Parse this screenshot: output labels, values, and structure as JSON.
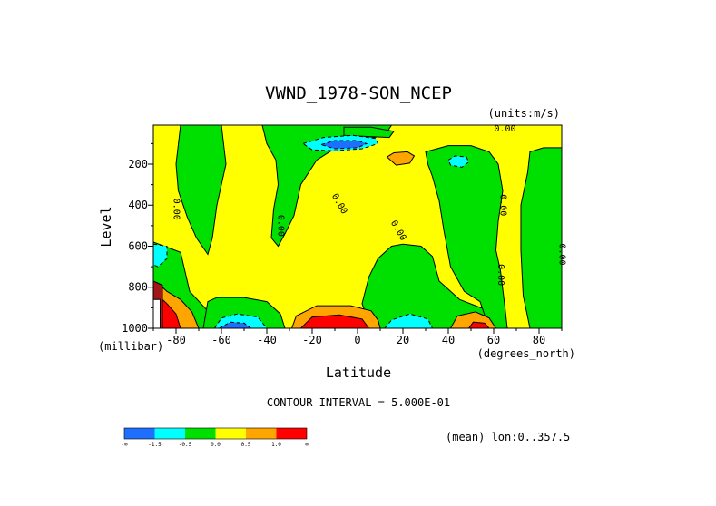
{
  "chart_data": {
    "type": "heatmap",
    "title": "VWND_1978-SON_NCEP",
    "units": "(units:m/s)",
    "xlabel": "Latitude",
    "x_units": "(degrees_north)",
    "ylabel": "Level",
    "y_units": "(millibar)",
    "xlim": [
      -90,
      90
    ],
    "ylim": [
      1000,
      10
    ],
    "y_reversed": true,
    "x_ticks": [
      {
        "value": -80,
        "label": "-80"
      },
      {
        "value": -60,
        "label": "-60"
      },
      {
        "value": -40,
        "label": "-40"
      },
      {
        "value": -20,
        "label": "-20"
      },
      {
        "value": 0,
        "label": "0"
      },
      {
        "value": 20,
        "label": "20"
      },
      {
        "value": 40,
        "label": "40"
      },
      {
        "value": 60,
        "label": "60"
      },
      {
        "value": 80,
        "label": "80"
      }
    ],
    "y_ticks": [
      {
        "value": 200,
        "label": "200"
      },
      {
        "value": 400,
        "label": "400"
      },
      {
        "value": 600,
        "label": "600"
      },
      {
        "value": 800,
        "label": "800"
      },
      {
        "value": 1000,
        "label": "1000"
      }
    ],
    "contour_interval_text": "CONTOUR INTERVAL = 5.000E-01",
    "mean_text": "(mean) lon:0..357.5",
    "legend": {
      "colors": [
        "#1f6fff",
        "#00ffff",
        "#00e000",
        "#ffff00",
        "#ffa500",
        "#ff0000"
      ],
      "labels": [
        "-∞",
        "-1.5",
        "-0.5",
        "0.0",
        "0.5",
        "1.0",
        "∞"
      ]
    },
    "contour_labels": [
      {
        "text": "0.00",
        "lat": -81,
        "lev": 420,
        "rot": 90
      },
      {
        "text": "0.00",
        "lat": -35,
        "lev": 500,
        "rot": 90
      },
      {
        "text": "0.00",
        "lat": -9,
        "lev": 400,
        "rot": 60
      },
      {
        "text": "0.00",
        "lat": 17,
        "lev": 530,
        "rot": 60
      },
      {
        "text": "0.00",
        "lat": 63,
        "lev": 400,
        "rot": 90
      },
      {
        "text": "0.00",
        "lat": 62,
        "lev": 740,
        "rot": 90
      },
      {
        "text": "0.00",
        "lat": 89,
        "lev": 640,
        "rot": 90
      },
      {
        "text": "0.00",
        "lat": 65,
        "lev": 40,
        "rot": 0
      }
    ],
    "regions": [
      {
        "level": "0.5",
        "pts": [
          [
            -90,
            10
          ],
          [
            90,
            10
          ],
          [
            90,
            1000
          ],
          [
            -90,
            1000
          ]
        ]
      },
      {
        "level": "0.0",
        "pts": [
          [
            -90,
            580
          ],
          [
            -78,
            630
          ],
          [
            -74,
            820
          ],
          [
            -64,
            940
          ],
          [
            -58,
            1000
          ],
          [
            -90,
            1000
          ]
        ]
      },
      {
        "level": "0.0",
        "pts": [
          [
            -78,
            10
          ],
          [
            -60,
            10
          ],
          [
            -58,
            200
          ],
          [
            -62,
            400
          ],
          [
            -64,
            560
          ],
          [
            -66,
            640
          ],
          [
            -71,
            560
          ],
          [
            -75,
            460
          ],
          [
            -79,
            330
          ],
          [
            -80,
            200
          ]
        ]
      },
      {
        "level": "0.0",
        "pts": [
          [
            -66,
            870
          ],
          [
            -62,
            850
          ],
          [
            -50,
            850
          ],
          [
            -40,
            870
          ],
          [
            -34,
            930
          ],
          [
            -32,
            1000
          ],
          [
            -68,
            1000
          ]
        ]
      },
      {
        "level": "0.0",
        "pts": [
          [
            -42,
            10
          ],
          [
            15,
            10
          ],
          [
            12,
            60
          ],
          [
            3,
            80
          ],
          [
            -8,
            110
          ],
          [
            -18,
            180
          ],
          [
            -25,
            300
          ],
          [
            -28,
            450
          ],
          [
            -32,
            540
          ],
          [
            -35,
            600
          ],
          [
            -38,
            560
          ],
          [
            -37,
            420
          ],
          [
            -35,
            300
          ],
          [
            -36,
            180
          ],
          [
            -40,
            100
          ]
        ]
      },
      {
        "level": "0.0",
        "pts": [
          [
            -6,
            20
          ],
          [
            6,
            20
          ],
          [
            16,
            40
          ],
          [
            14,
            70
          ],
          [
            -6,
            60
          ]
        ]
      },
      {
        "level": "0.0",
        "pts": [
          [
            15,
            600
          ],
          [
            20,
            590
          ],
          [
            28,
            600
          ],
          [
            33,
            650
          ],
          [
            36,
            770
          ],
          [
            45,
            860
          ],
          [
            52,
            890
          ],
          [
            64,
            940
          ],
          [
            66,
            1000
          ],
          [
            6,
            1000
          ],
          [
            2,
            880
          ],
          [
            5,
            750
          ],
          [
            9,
            660
          ]
        ]
      },
      {
        "level": "0.0",
        "pts": [
          [
            30,
            140
          ],
          [
            40,
            110
          ],
          [
            50,
            110
          ],
          [
            58,
            140
          ],
          [
            62,
            200
          ],
          [
            64,
            330
          ],
          [
            62,
            480
          ],
          [
            61,
            620
          ],
          [
            63,
            720
          ],
          [
            65,
            900
          ],
          [
            66,
            1000
          ],
          [
            58,
            1000
          ],
          [
            54,
            870
          ],
          [
            47,
            820
          ],
          [
            41,
            700
          ],
          [
            38,
            520
          ],
          [
            36,
            380
          ],
          [
            33,
            260
          ],
          [
            31,
            200
          ]
        ]
      },
      {
        "level": "0.0",
        "pts": [
          [
            76,
            140
          ],
          [
            82,
            120
          ],
          [
            90,
            120
          ],
          [
            90,
            1000
          ],
          [
            76,
            1000
          ],
          [
            73,
            840
          ],
          [
            72,
            620
          ],
          [
            72,
            400
          ],
          [
            75,
            240
          ]
        ]
      },
      {
        "level": "-0.5",
        "pts": [
          [
            -24,
            100
          ],
          [
            -15,
            70
          ],
          [
            -2,
            60
          ],
          [
            8,
            75
          ],
          [
            9,
            100
          ],
          [
            2,
            125
          ],
          [
            -10,
            135
          ],
          [
            -20,
            130
          ]
        ]
      },
      {
        "level": "-0.5",
        "pts": [
          [
            40,
            180
          ],
          [
            43,
            160
          ],
          [
            48,
            165
          ],
          [
            49,
            190
          ],
          [
            46,
            215
          ],
          [
            41,
            205
          ]
        ]
      },
      {
        "level": "-0.5",
        "pts": [
          [
            -90,
            590
          ],
          [
            -84,
            600
          ],
          [
            -84,
            660
          ],
          [
            -88,
            700
          ],
          [
            -90,
            690
          ]
        ]
      },
      {
        "level": "-0.5",
        "pts": [
          [
            -63,
            1000
          ],
          [
            -60,
            950
          ],
          [
            -53,
            930
          ],
          [
            -44,
            945
          ],
          [
            -40,
            1000
          ]
        ]
      },
      {
        "level": "-0.5",
        "pts": [
          [
            12,
            1000
          ],
          [
            15,
            960
          ],
          [
            23,
            930
          ],
          [
            31,
            955
          ],
          [
            33,
            1000
          ]
        ]
      },
      {
        "level": "-1.5",
        "pts": [
          [
            -16,
            105
          ],
          [
            -10,
            85
          ],
          [
            0,
            85
          ],
          [
            4,
            100
          ],
          [
            0,
            120
          ],
          [
            -10,
            125
          ]
        ]
      },
      {
        "level": "-1.5",
        "pts": [
          [
            -61,
            1000
          ],
          [
            -56,
            970
          ],
          [
            -50,
            975
          ],
          [
            -47,
            1000
          ]
        ]
      },
      {
        "level": "0.5h",
        "pts": [
          [
            13,
            165
          ],
          [
            16,
            145
          ],
          [
            22,
            140
          ],
          [
            25,
            160
          ],
          [
            23,
            195
          ],
          [
            17,
            205
          ]
        ]
      },
      {
        "level": "0.5h",
        "pts": [
          [
            -88,
            780
          ],
          [
            -84,
            820
          ],
          [
            -78,
            860
          ],
          [
            -73,
            920
          ],
          [
            -70,
            1000
          ],
          [
            -88,
            1000
          ]
        ]
      },
      {
        "level": "0.5h",
        "pts": [
          [
            -29,
            1000
          ],
          [
            -27,
            940
          ],
          [
            -18,
            890
          ],
          [
            -3,
            890
          ],
          [
            6,
            915
          ],
          [
            9,
            960
          ],
          [
            10,
            1000
          ]
        ]
      },
      {
        "level": "0.5h",
        "pts": [
          [
            41,
            1000
          ],
          [
            44,
            940
          ],
          [
            52,
            920
          ],
          [
            58,
            950
          ],
          [
            61,
            1000
          ]
        ]
      },
      {
        "level": "1.0",
        "pts": [
          [
            -89,
            830
          ],
          [
            -84,
            880
          ],
          [
            -80,
            930
          ],
          [
            -78,
            1000
          ],
          [
            -89,
            1000
          ]
        ]
      },
      {
        "level": "1.0",
        "pts": [
          [
            -25,
            1000
          ],
          [
            -20,
            945
          ],
          [
            -8,
            935
          ],
          [
            2,
            955
          ],
          [
            5,
            1000
          ]
        ]
      },
      {
        "level": "1.0",
        "pts": [
          [
            49,
            1000
          ],
          [
            51,
            970
          ],
          [
            56,
            975
          ],
          [
            58,
            1000
          ]
        ]
      },
      {
        "level": "1.5",
        "pts": [
          [
            -90,
            770
          ],
          [
            -86,
            790
          ],
          [
            -86,
            1000
          ],
          [
            -90,
            1000
          ]
        ]
      },
      {
        "level": "white",
        "pts": [
          [
            -90,
            860
          ],
          [
            -87,
            860
          ],
          [
            -87,
            1000
          ],
          [
            -90,
            1000
          ]
        ]
      }
    ]
  }
}
